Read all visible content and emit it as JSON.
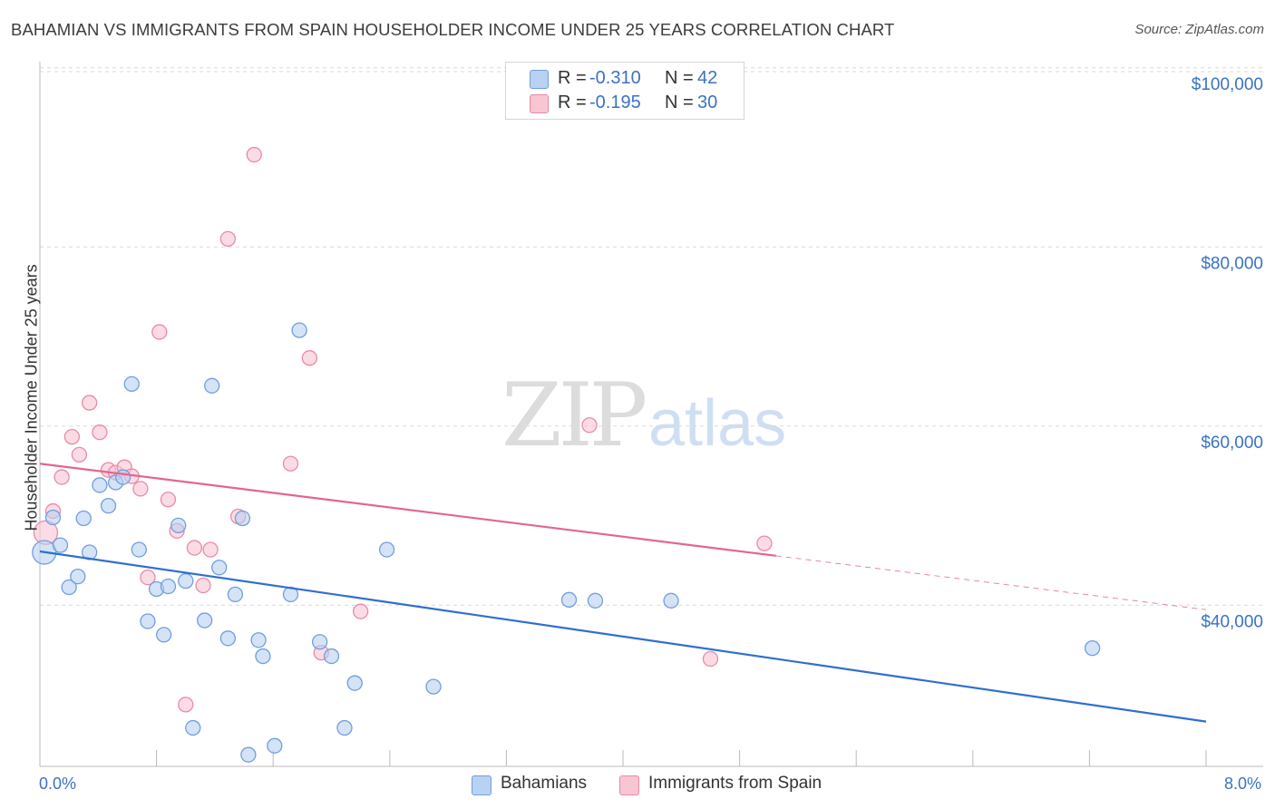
{
  "title": "BAHAMIAN VS IMMIGRANTS FROM SPAIN HOUSEHOLDER INCOME UNDER 25 YEARS CORRELATION CHART",
  "source": "Source: ZipAtlas.com",
  "watermark": {
    "zip": "ZIP",
    "atlas": "atlas"
  },
  "colors": {
    "blue_fill": "#b9d1f2",
    "blue_stroke": "#6f9fdc",
    "blue_line": "#2f6fcf",
    "pink_fill": "#f8c5d3",
    "pink_stroke": "#e98aa8",
    "pink_line": "#e2668f",
    "tick_text": "#3a72c4"
  },
  "stats": [
    {
      "r_label": "R =",
      "r_value": "-0.310",
      "n_label": "N =",
      "n_value": "42",
      "color": "blue"
    },
    {
      "r_label": "R =",
      "r_value": "-0.195",
      "n_label": "N =",
      "n_value": "30",
      "color": "pink"
    }
  ],
  "legend": [
    {
      "label": "Bahamians",
      "color": "blue"
    },
    {
      "label": "Immigrants from Spain",
      "color": "pink"
    }
  ],
  "chart_data": {
    "type": "scatter",
    "title": "BAHAMIAN VS IMMIGRANTS FROM SPAIN HOUSEHOLDER INCOME UNDER 25 YEARS CORRELATION CHART",
    "xlabel": "",
    "ylabel": "Householder Income Under 25 years",
    "xlim": [
      0,
      8.0
    ],
    "ylim": [
      22000,
      102000
    ],
    "x_tick_labels": [
      "0.0%",
      "8.0%"
    ],
    "y_ticks": [
      40000,
      60000,
      80000,
      100000
    ],
    "y_tick_labels": [
      "$40,000",
      "$60,000",
      "$80,000",
      "$100,000"
    ],
    "grid": "horizontal dashed",
    "legend_position": "bottom-center",
    "series": [
      {
        "name": "Bahamians",
        "color": "blue",
        "trend": {
          "x": [
            0.0,
            8.0
          ],
          "y": [
            46000,
            27000
          ],
          "solid_to": 8.0
        },
        "points": [
          {
            "x": 0.03,
            "y": 45900,
            "big": true
          },
          {
            "x": 0.09,
            "y": 49800
          },
          {
            "x": 0.14,
            "y": 46700
          },
          {
            "x": 0.2,
            "y": 42000
          },
          {
            "x": 0.26,
            "y": 43200
          },
          {
            "x": 0.3,
            "y": 49700
          },
          {
            "x": 0.34,
            "y": 45900
          },
          {
            "x": 0.41,
            "y": 53400
          },
          {
            "x": 0.47,
            "y": 51100
          },
          {
            "x": 0.52,
            "y": 53700
          },
          {
            "x": 0.57,
            "y": 54300
          },
          {
            "x": 0.63,
            "y": 64700
          },
          {
            "x": 0.68,
            "y": 46200
          },
          {
            "x": 0.74,
            "y": 38200
          },
          {
            "x": 0.8,
            "y": 41800
          },
          {
            "x": 0.85,
            "y": 36700
          },
          {
            "x": 0.88,
            "y": 42100
          },
          {
            "x": 0.95,
            "y": 48900
          },
          {
            "x": 1.0,
            "y": 42700
          },
          {
            "x": 1.05,
            "y": 26300
          },
          {
            "x": 1.13,
            "y": 38300
          },
          {
            "x": 1.18,
            "y": 64500
          },
          {
            "x": 1.23,
            "y": 44200
          },
          {
            "x": 1.29,
            "y": 36300
          },
          {
            "x": 1.34,
            "y": 41200
          },
          {
            "x": 1.39,
            "y": 49700
          },
          {
            "x": 1.43,
            "y": 23300
          },
          {
            "x": 1.5,
            "y": 36100
          },
          {
            "x": 1.53,
            "y": 34300
          },
          {
            "x": 1.61,
            "y": 24300
          },
          {
            "x": 1.72,
            "y": 41200
          },
          {
            "x": 1.78,
            "y": 70700
          },
          {
            "x": 1.92,
            "y": 35900
          },
          {
            "x": 2.0,
            "y": 34300
          },
          {
            "x": 2.09,
            "y": 26300
          },
          {
            "x": 2.16,
            "y": 31300
          },
          {
            "x": 2.38,
            "y": 46200
          },
          {
            "x": 2.7,
            "y": 30900
          },
          {
            "x": 3.63,
            "y": 40600
          },
          {
            "x": 3.81,
            "y": 40500
          },
          {
            "x": 4.33,
            "y": 40500
          },
          {
            "x": 7.22,
            "y": 35200
          }
        ]
      },
      {
        "name": "Immigrants from Spain",
        "color": "pink",
        "trend": {
          "x": [
            0.0,
            8.0
          ],
          "y": [
            55800,
            39500
          ],
          "solid_to": 5.05
        },
        "points": [
          {
            "x": 0.04,
            "y": 48100,
            "big": true
          },
          {
            "x": 0.09,
            "y": 50500
          },
          {
            "x": 0.15,
            "y": 54300
          },
          {
            "x": 0.22,
            "y": 58800
          },
          {
            "x": 0.27,
            "y": 56800
          },
          {
            "x": 0.34,
            "y": 62600
          },
          {
            "x": 0.41,
            "y": 59300
          },
          {
            "x": 0.47,
            "y": 55100
          },
          {
            "x": 0.52,
            "y": 54800
          },
          {
            "x": 0.58,
            "y": 55400
          },
          {
            "x": 0.63,
            "y": 54400
          },
          {
            "x": 0.69,
            "y": 53000
          },
          {
            "x": 0.74,
            "y": 43100
          },
          {
            "x": 0.82,
            "y": 70500
          },
          {
            "x": 0.88,
            "y": 51800
          },
          {
            "x": 0.94,
            "y": 48300
          },
          {
            "x": 1.0,
            "y": 28900
          },
          {
            "x": 1.06,
            "y": 46400
          },
          {
            "x": 1.12,
            "y": 42200
          },
          {
            "x": 1.17,
            "y": 46200
          },
          {
            "x": 1.29,
            "y": 80900
          },
          {
            "x": 1.36,
            "y": 49900
          },
          {
            "x": 1.47,
            "y": 90300
          },
          {
            "x": 1.72,
            "y": 55800
          },
          {
            "x": 1.85,
            "y": 67600
          },
          {
            "x": 1.93,
            "y": 34700
          },
          {
            "x": 2.2,
            "y": 39300
          },
          {
            "x": 3.77,
            "y": 60100
          },
          {
            "x": 4.6,
            "y": 34000
          },
          {
            "x": 4.97,
            "y": 46900
          }
        ]
      }
    ]
  }
}
